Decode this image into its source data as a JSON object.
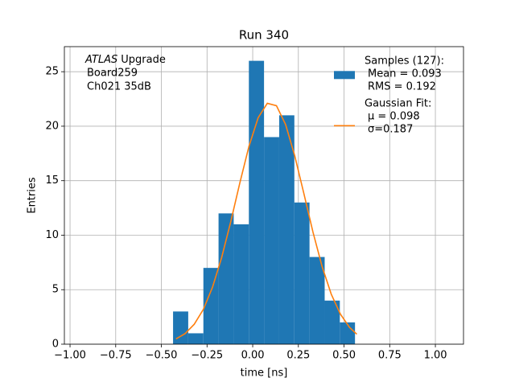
{
  "chart_data": {
    "type": "histogram",
    "title": "Run 340",
    "xlabel": "time [ns]",
    "ylabel": "Entries",
    "annotation_italic": "ATLAS",
    "annotation": [
      "Upgrade",
      "Board259",
      "Ch021 35dB"
    ],
    "series": [
      {
        "name": "Samples (127):",
        "legend_lines": [
          "Mean = 0.093",
          "RMS = 0.192"
        ],
        "type": "histogram",
        "color": "#1f77b4",
        "bins": [
          -0.436,
          -0.353,
          -0.27,
          -0.187,
          -0.104,
          -0.021,
          0.062,
          0.145,
          0.228,
          0.311,
          0.394,
          0.477,
          0.56
        ],
        "values": [
          3,
          1,
          7,
          12,
          11,
          26,
          19,
          21,
          13,
          8,
          4,
          2
        ]
      },
      {
        "name": "Gaussian Fit:",
        "legend_lines": [
          "μ = 0.098",
          "σ=0.187"
        ],
        "type": "line",
        "color": "#ff7f0e",
        "x": [
          -0.42,
          -0.37,
          -0.32,
          -0.27,
          -0.22,
          -0.17,
          -0.12,
          -0.07,
          -0.02,
          0.03,
          0.08,
          0.13,
          0.18,
          0.23,
          0.28,
          0.33,
          0.38,
          0.43,
          0.48,
          0.53,
          0.57
        ],
        "values": [
          0.48,
          0.97,
          1.83,
          3.2,
          5.23,
          7.95,
          11.25,
          14.83,
          18.19,
          20.78,
          22.1,
          21.88,
          20.16,
          17.3,
          13.83,
          10.28,
          7.12,
          4.59,
          2.76,
          1.54,
          0.92
        ]
      }
    ],
    "xlim": [
      -1.031,
      1.154
    ],
    "ylim": [
      0,
      27.3
    ],
    "xticks": [
      {
        "value": -1,
        "label": "−1.00"
      },
      {
        "value": -0.75,
        "label": "−0.75"
      },
      {
        "value": -0.5,
        "label": "−0.50"
      },
      {
        "value": -0.25,
        "label": "−0.25"
      },
      {
        "value": 0,
        "label": "0.00"
      },
      {
        "value": 0.25,
        "label": "0.25"
      },
      {
        "value": 0.5,
        "label": "0.50"
      },
      {
        "value": 0.75,
        "label": "0.75"
      },
      {
        "value": 1,
        "label": "1.00"
      }
    ],
    "yticks": [
      0,
      5,
      10,
      15,
      20,
      25
    ],
    "grid": true,
    "legend": "upper right"
  }
}
